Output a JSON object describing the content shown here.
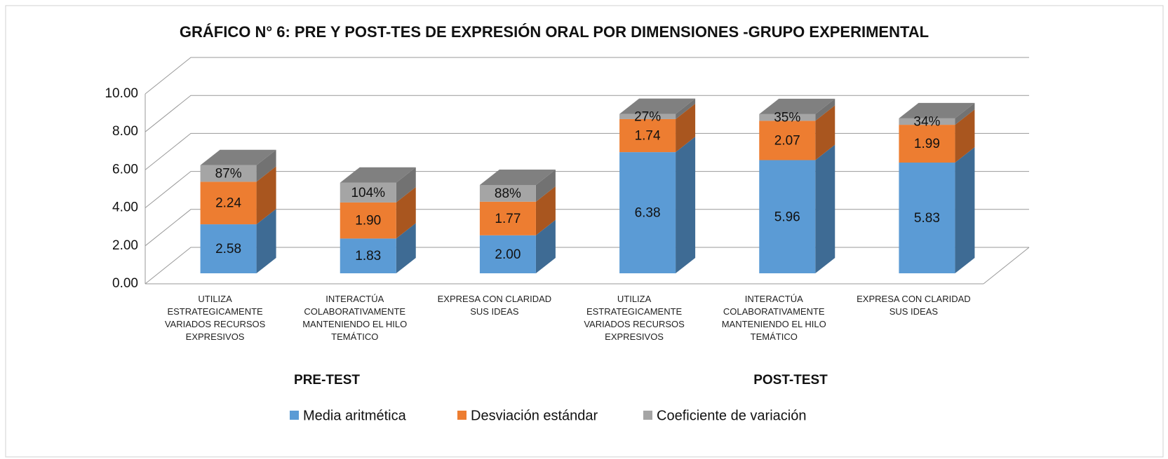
{
  "chart_data": {
    "type": "bar3d_stacked",
    "title": "GRÁFICO N° 6: PRE Y POST-TES DE EXPRESIÓN ORAL POR DIMENSIONES -GRUPO EXPERIMENTAL",
    "categories": [
      "UTILIZA ESTRATEGICAMENTE VARIADOS RECURSOS EXPRESIVOS",
      "INTERACTÚA COLABORATIVAMENTE MANTENIENDO EL HILO TEMÁTICO",
      "EXPRESA CON CLARIDAD SUS IDEAS",
      "UTILIZA ESTRATEGICAMENTE VARIADOS RECURSOS EXPRESIVOS",
      "INTERACTÚA COLABORATIVAMENTE MANTENIENDO EL HILO TEMÁTICO",
      "EXPRESA CON CLARIDAD SUS IDEAS"
    ],
    "group_labels": [
      "PRE-TEST",
      "POST-TEST"
    ],
    "series": [
      {
        "name": "Media aritmética",
        "color": "#5b9bd5",
        "side_color": "#3e6b94",
        "top_color": "#7fb0de",
        "values": [
          2.58,
          1.83,
          2.0,
          6.38,
          5.96,
          5.83
        ],
        "value_labels": [
          "2.58",
          "1.83",
          "2.00",
          "6.38",
          "5.96",
          "5.83"
        ]
      },
      {
        "name": "Desviación estándar",
        "color": "#ed7d31",
        "side_color": "#a9561f",
        "top_color": "#f29a5e",
        "values": [
          2.24,
          1.9,
          1.77,
          1.74,
          2.07,
          1.99
        ],
        "value_labels": [
          "2.24",
          "1.90",
          "1.77",
          "1.74",
          "2.07",
          "1.99"
        ]
      },
      {
        "name": "Coeficiente de variación",
        "color": "#a5a5a5",
        "side_color": "#727272",
        "top_color": "#808080",
        "values": [
          0.87,
          1.04,
          0.88,
          0.27,
          0.35,
          0.34
        ],
        "value_labels": [
          "87%",
          "104%",
          "88%",
          "27%",
          "35%",
          "34%"
        ]
      }
    ],
    "ylim": [
      0,
      10
    ],
    "yticks": [
      {
        "value": 0,
        "label": "0.00"
      },
      {
        "value": 2,
        "label": "2.00"
      },
      {
        "value": 4,
        "label": "4.00"
      },
      {
        "value": 6,
        "label": "6.00"
      },
      {
        "value": 8,
        "label": "8.00"
      },
      {
        "value": 10,
        "label": "10.00"
      }
    ],
    "grid": true,
    "legend": "bottom"
  }
}
